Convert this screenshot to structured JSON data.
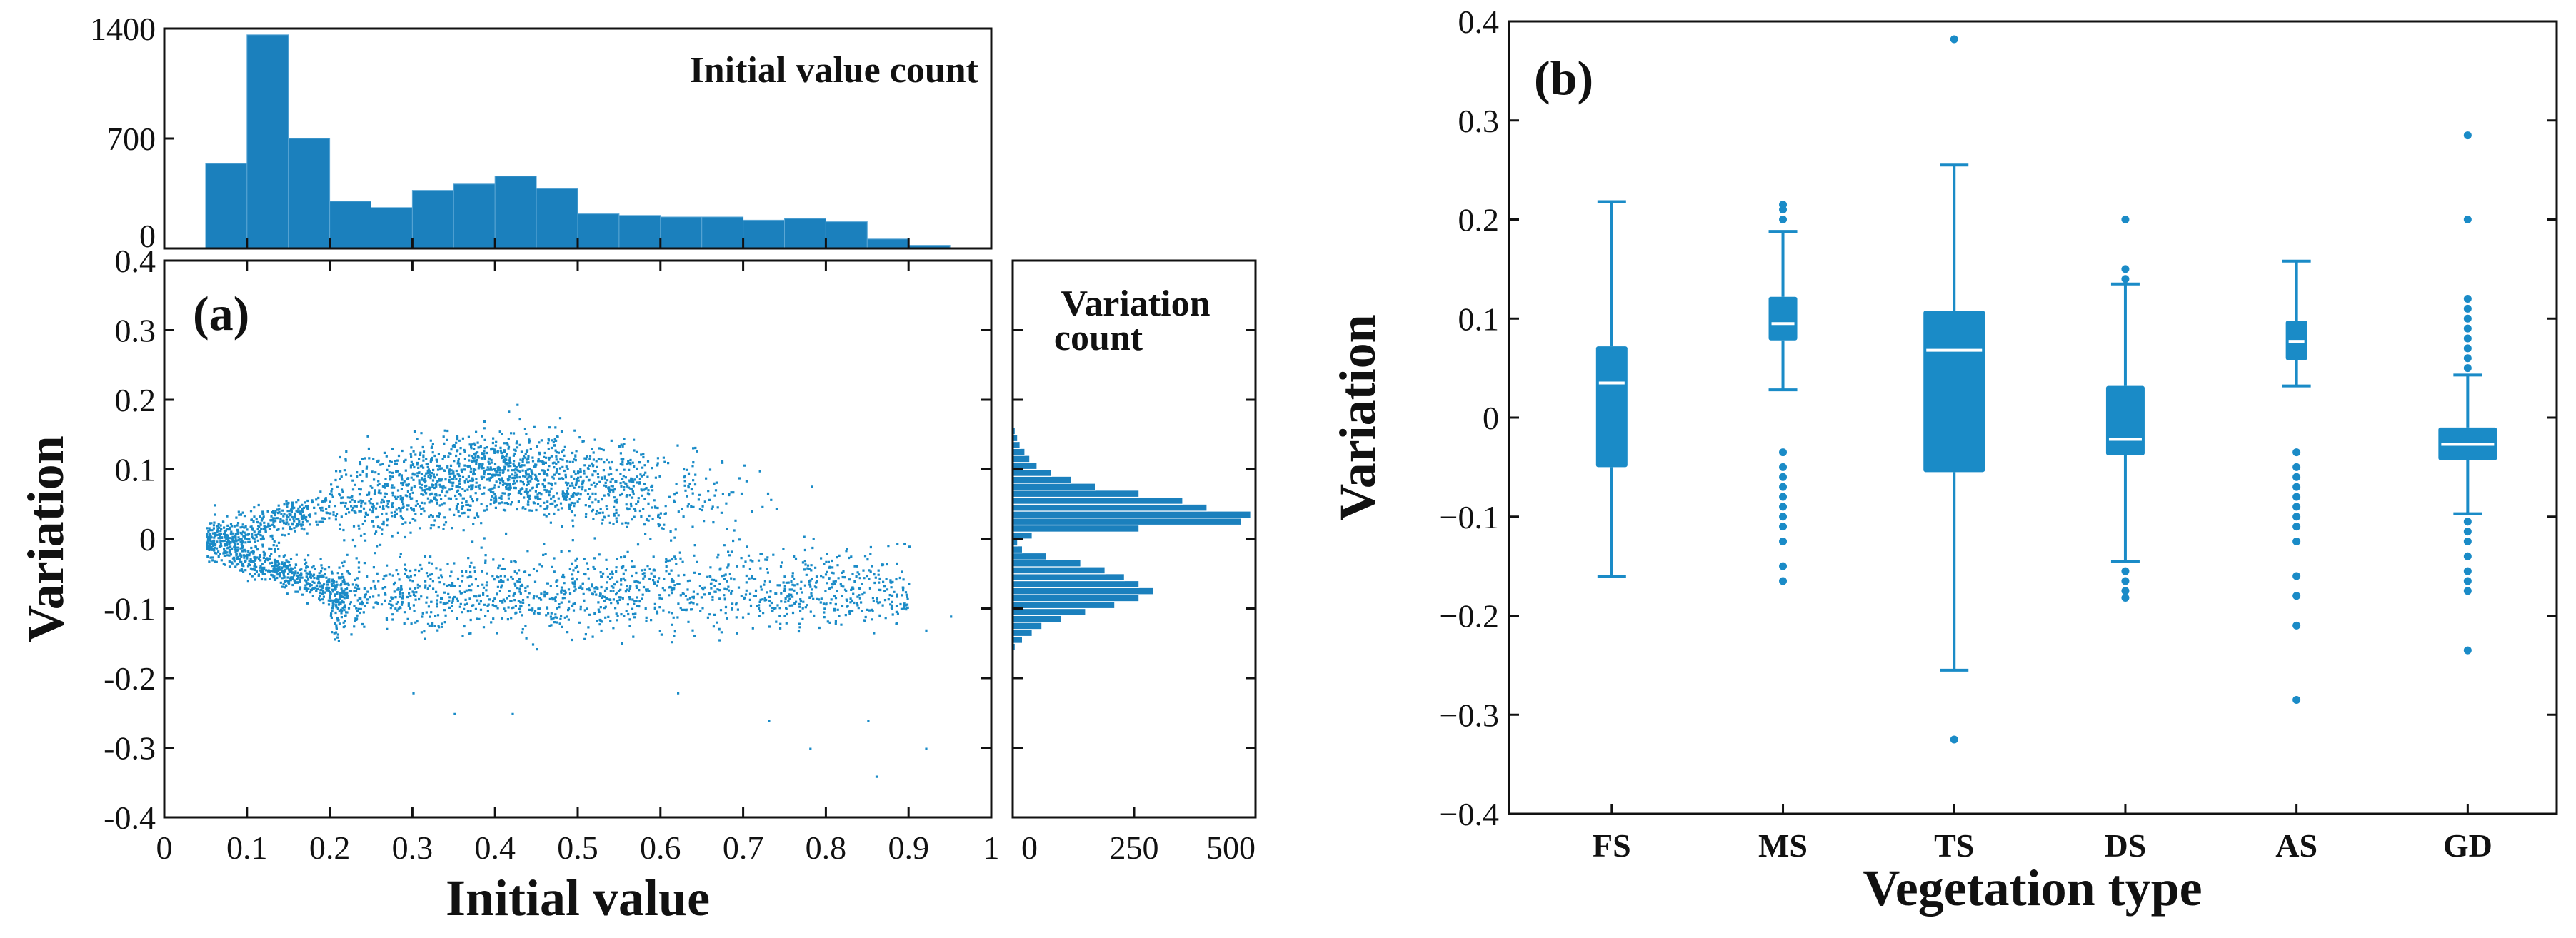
{
  "colors": {
    "data": "#1a8bc7",
    "bar": "#1b80bd",
    "median": "#ffffff",
    "axis": "#111111"
  },
  "chart_data": [
    {
      "id": "a",
      "type": "scatter",
      "panel_label": "(a)",
      "xlabel": "Initial value",
      "ylabel": "Variation",
      "xlim": [
        0,
        1
      ],
      "ylim": [
        -0.4,
        0.4
      ],
      "xticks": [
        0,
        0.1,
        0.2,
        0.3,
        0.4,
        0.5,
        0.6,
        0.7,
        0.8,
        0.9,
        1
      ],
      "xtick_labels": [
        "0",
        "0.1",
        "0.2",
        "0.3",
        "0.4",
        "0.5",
        "0.6",
        "0.7",
        "0.8",
        "0.9",
        "1"
      ],
      "yticks": [
        -0.4,
        -0.3,
        -0.2,
        -0.1,
        0,
        0.1,
        0.2,
        0.3,
        0.4
      ],
      "ytick_labels": [
        "-0.4",
        "-0.3",
        "-0.2",
        "-0.1",
        "0",
        "0.1",
        "0.2",
        "0.3",
        "0.4"
      ],
      "point_clouds": [
        {
          "name": "upper branch",
          "x_range": [
            0.05,
            0.88
          ],
          "peak_x": 0.4,
          "peak_y": 0.1,
          "end_y": 0.03,
          "count": 2200
        },
        {
          "name": "lower branch",
          "x_range": [
            0.05,
            0.9
          ],
          "dense_y": -0.07,
          "plateau_y": -0.08,
          "count": 2000
        }
      ],
      "outliers": [
        {
          "x": 0.3,
          "y": -0.22
        },
        {
          "x": 0.35,
          "y": -0.25
        },
        {
          "x": 0.42,
          "y": -0.25
        },
        {
          "x": 0.62,
          "y": -0.22
        },
        {
          "x": 0.73,
          "y": -0.26
        },
        {
          "x": 0.78,
          "y": -0.3
        },
        {
          "x": 0.85,
          "y": -0.26
        },
        {
          "x": 0.86,
          "y": -0.34
        },
        {
          "x": 0.92,
          "y": -0.3
        },
        {
          "x": 0.92,
          "y": -0.13
        },
        {
          "x": 0.95,
          "y": -0.11
        },
        {
          "x": 0.06,
          "y": 0.05
        }
      ]
    },
    {
      "id": "a_top",
      "type": "bar",
      "title": "Initial value count",
      "xlim": [
        0,
        1
      ],
      "ylim": [
        0,
        1400
      ],
      "yticks": [
        0,
        700,
        1400
      ],
      "ytick_labels": [
        "0",
        "700",
        "1400"
      ],
      "bin_edges": [
        0.05,
        0.1,
        0.15,
        0.2,
        0.25,
        0.3,
        0.35,
        0.4,
        0.45,
        0.5,
        0.55,
        0.6,
        0.65,
        0.7,
        0.75,
        0.8,
        0.85,
        0.9,
        0.95
      ],
      "values": [
        540,
        1360,
        700,
        300,
        260,
        370,
        410,
        460,
        380,
        220,
        210,
        200,
        200,
        180,
        190,
        170,
        60,
        20
      ]
    },
    {
      "id": "a_right",
      "type": "bar",
      "orientation": "horizontal",
      "title": [
        "Variation",
        "count"
      ],
      "xlim": [
        0,
        500
      ],
      "xticks": [
        0,
        250,
        500
      ],
      "xtick_labels": [
        "0",
        "250",
        "500"
      ],
      "ylim": [
        -0.4,
        0.4
      ],
      "bin_edges": [
        -0.16,
        -0.15,
        -0.14,
        -0.13,
        -0.12,
        -0.11,
        -0.1,
        -0.09,
        -0.08,
        -0.07,
        -0.06,
        -0.05,
        -0.04,
        -0.03,
        -0.02,
        -0.01,
        0,
        0.01,
        0.02,
        0.03,
        0.04,
        0.05,
        0.06,
        0.07,
        0.08,
        0.09,
        0.1,
        0.11,
        0.12,
        0.13,
        0.14,
        0.15,
        0.16
      ],
      "values": [
        5,
        20,
        40,
        60,
        100,
        150,
        210,
        260,
        290,
        260,
        230,
        190,
        140,
        70,
        20,
        10,
        40,
        260,
        470,
        490,
        400,
        350,
        260,
        170,
        120,
        80,
        50,
        35,
        25,
        15,
        10,
        5
      ]
    },
    {
      "id": "b",
      "type": "box",
      "panel_label": "(b)",
      "xlabel": "Vegetation type",
      "ylabel": "Variation",
      "ylim": [
        -0.4,
        0.4
      ],
      "yticks": [
        -0.4,
        -0.3,
        -0.2,
        -0.1,
        0,
        0.1,
        0.2,
        0.3,
        0.4
      ],
      "ytick_labels": [
        "−0.4",
        "−0.3",
        "−0.2",
        "−0.1",
        "0",
        "0.1",
        "0.2",
        "0.3",
        "0.4"
      ],
      "categories": [
        "FS",
        "MS",
        "TS",
        "DS",
        "AS",
        "GD"
      ],
      "boxes": [
        {
          "name": "FS",
          "whislo": -0.16,
          "q1": -0.05,
          "med": 0.035,
          "q3": 0.072,
          "whishi": 0.218,
          "fliers": []
        },
        {
          "name": "MS",
          "whislo": 0.028,
          "q1": 0.078,
          "med": 0.095,
          "q3": 0.122,
          "whishi": 0.188,
          "fliers": [
            0.2,
            0.21,
            0.215,
            -0.035,
            -0.05,
            -0.06,
            -0.07,
            -0.08,
            -0.09,
            -0.1,
            -0.11,
            -0.125,
            -0.15,
            -0.165
          ]
        },
        {
          "name": "TS",
          "whislo": -0.255,
          "q1": -0.055,
          "med": 0.068,
          "q3": 0.108,
          "whishi": 0.255,
          "fliers": [
            0.382,
            -0.325
          ]
        },
        {
          "name": "DS",
          "whislo": -0.145,
          "q1": -0.038,
          "med": -0.022,
          "q3": 0.032,
          "whishi": 0.135,
          "fliers": [
            0.2,
            0.15,
            0.14,
            -0.155,
            -0.165,
            -0.175,
            -0.182
          ]
        },
        {
          "name": "AS",
          "whislo": 0.032,
          "q1": 0.058,
          "med": 0.077,
          "q3": 0.098,
          "whishi": 0.158,
          "fliers": [
            -0.035,
            -0.05,
            -0.06,
            -0.07,
            -0.08,
            -0.09,
            -0.1,
            -0.11,
            -0.125,
            -0.16,
            -0.18,
            -0.21,
            -0.285
          ]
        },
        {
          "name": "GD",
          "whislo": -0.097,
          "q1": -0.043,
          "med": -0.027,
          "q3": -0.01,
          "whishi": 0.043,
          "fliers": [
            0.285,
            0.2,
            0.12,
            0.11,
            0.1,
            0.09,
            0.08,
            0.07,
            0.06,
            0.05,
            -0.105,
            -0.115,
            -0.125,
            -0.14,
            -0.155,
            -0.165,
            -0.175,
            -0.235
          ]
        }
      ]
    }
  ]
}
